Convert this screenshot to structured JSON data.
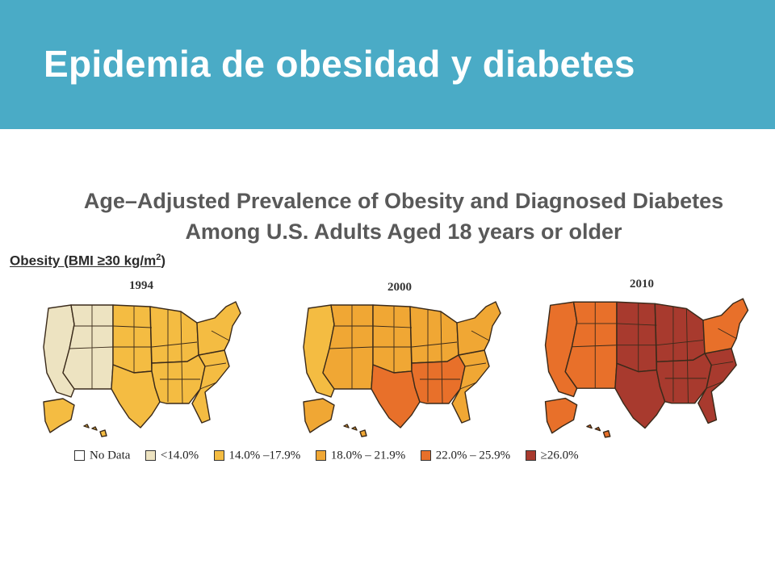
{
  "slide": {
    "title": "Epidemia de obesidad y diabetes",
    "banner_color": "#4aabc6"
  },
  "figure": {
    "title_line1": "Age–Adjusted Prevalence of Obesity and Diagnosed Diabetes",
    "title_line2": "Among U.S. Adults Aged 18 years or older",
    "obesity_label": "Obesity (BMI ≥30 kg/m",
    "obesity_label_sup": "2",
    "obesity_label_close": ")"
  },
  "maps": [
    {
      "year": "1994",
      "regions": {
        "west": 1,
        "mountain": 1,
        "plains": 2,
        "texas": 2,
        "midwest": 2,
        "south": 2,
        "southeast": 2,
        "northeast": 2,
        "alaska": 2,
        "hawaii": 2
      }
    },
    {
      "year": "2000",
      "regions": {
        "west": 2,
        "mountain": 3,
        "plains": 3,
        "texas": 4,
        "midwest": 3,
        "south": 4,
        "southeast": 3,
        "northeast": 3,
        "alaska": 3,
        "hawaii": 3
      }
    },
    {
      "year": "2010",
      "regions": {
        "west": 4,
        "mountain": 4,
        "plains": 5,
        "texas": 5,
        "midwest": 5,
        "south": 5,
        "southeast": 5,
        "northeast": 4,
        "alaska": 4,
        "hawaii": 4
      }
    }
  ],
  "legend": [
    {
      "label": "No Data",
      "color": "#ffffff"
    },
    {
      "label": "<14.0%",
      "color": "#ede3c1"
    },
    {
      "label": "14.0% –17.9%",
      "color": "#f4bc42"
    },
    {
      "label": "18.0% – 21.9%",
      "color": "#f0a734"
    },
    {
      "label": "22.0% – 25.9%",
      "color": "#e8702a"
    },
    {
      "label": "≥26.0%",
      "color": "#a83a2e"
    }
  ]
}
